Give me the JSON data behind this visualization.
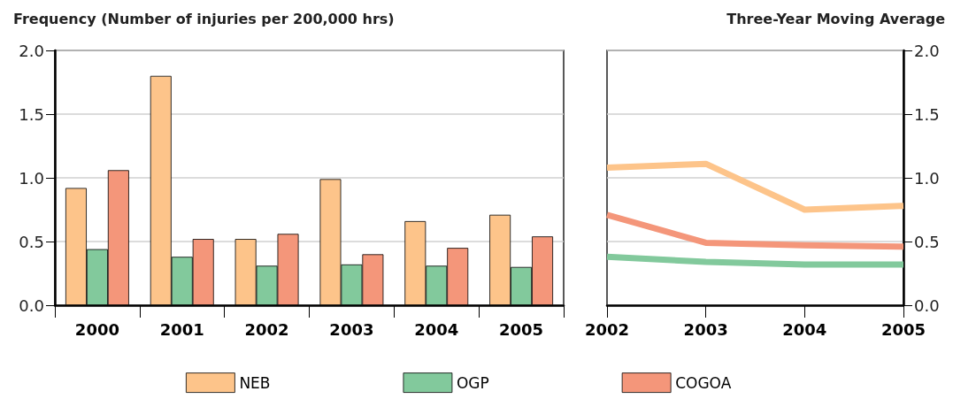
{
  "chart_data": [
    {
      "type": "bar",
      "title": "Frequency (Number of injuries per 200,000 hrs)",
      "categories": [
        "2000",
        "2001",
        "2002",
        "2003",
        "2004",
        "2005"
      ],
      "series": [
        {
          "name": "NEB",
          "color": "#fdc48a",
          "values": [
            0.92,
            1.8,
            0.52,
            0.99,
            0.66,
            0.71
          ]
        },
        {
          "name": "OGP",
          "color": "#82c99c",
          "values": [
            0.44,
            0.38,
            0.31,
            0.32,
            0.31,
            0.3
          ]
        },
        {
          "name": "COGOA",
          "color": "#f4967a",
          "values": [
            1.06,
            0.52,
            0.56,
            0.4,
            0.45,
            0.54
          ]
        }
      ],
      "ylim": [
        0,
        2
      ],
      "yticks": [
        {
          "value": 0,
          "label": "0.0"
        },
        {
          "value": 0.5,
          "label": "0.5"
        },
        {
          "value": 1,
          "label": "1.0"
        },
        {
          "value": 1.5,
          "label": "1.5"
        },
        {
          "value": 2,
          "label": "2.0"
        }
      ],
      "grid": "y",
      "legend": "bottom"
    },
    {
      "type": "line",
      "title": "Three-Year Moving Average",
      "categories": [
        "2002",
        "2003",
        "2004",
        "2005"
      ],
      "series": [
        {
          "color": "#fdc48a",
          "values": [
            1.08,
            1.11,
            0.75,
            0.78
          ]
        },
        {
          "color": "#82c99c",
          "values": [
            0.38,
            0.34,
            0.32,
            0.32
          ]
        },
        {
          "color": "#f4967a",
          "values": [
            0.71,
            0.49,
            0.47,
            0.46
          ]
        }
      ],
      "ylim": [
        0,
        2
      ],
      "yticks": [
        {
          "value": 0,
          "label": "0.0"
        },
        {
          "value": 0.5,
          "label": "0.5"
        },
        {
          "value": 1,
          "label": "1.0"
        },
        {
          "value": 1.5,
          "label": "1.5"
        },
        {
          "value": 2,
          "label": "2.0"
        }
      ],
      "grid": "y",
      "marker": "none",
      "line_style": "solid"
    }
  ]
}
